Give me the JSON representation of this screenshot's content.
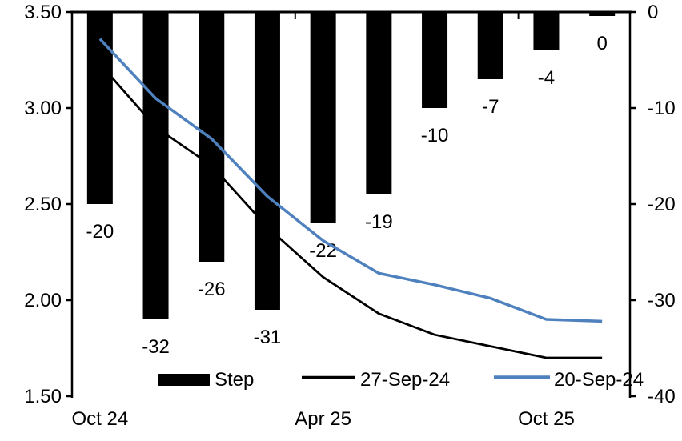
{
  "chart_data": {
    "type": "bar+line",
    "title": "",
    "categories_count": 10,
    "x_tick_labels": [
      {
        "index": 0,
        "label": "Oct 24"
      },
      {
        "index": 4,
        "label": "Apr 25"
      },
      {
        "index": 8,
        "label": "Oct 25"
      }
    ],
    "bar_series": {
      "name": "Step",
      "axis": "right",
      "color": "#000000",
      "values": [
        -20,
        -32,
        -26,
        -31,
        -22,
        -19,
        -10,
        -7,
        -4,
        0
      ],
      "labels": [
        "-20",
        "-32",
        "-26",
        "-31",
        "-22",
        "-19",
        "-10",
        "-7",
        "-4",
        "0"
      ]
    },
    "line_series": [
      {
        "name": "27-Sep-24",
        "axis": "left",
        "color": "#000000",
        "stroke_width": 2.75,
        "values": [
          3.23,
          2.9,
          2.7,
          2.38,
          2.12,
          1.93,
          1.82,
          1.76,
          1.7,
          1.7
        ]
      },
      {
        "name": "20-Sep-24",
        "axis": "left",
        "color": "#4E81BD",
        "stroke_width": 3.5,
        "values": [
          3.36,
          3.05,
          2.84,
          2.54,
          2.31,
          2.14,
          2.08,
          2.01,
          1.9,
          1.89
        ]
      }
    ],
    "left_axis": {
      "min": 1.5,
      "max": 3.5,
      "ticks": [
        {
          "value": 3.5,
          "label": "3.50"
        },
        {
          "value": 3.0,
          "label": "3.00"
        },
        {
          "value": 2.5,
          "label": "2.50"
        },
        {
          "value": 2.0,
          "label": "2.00"
        },
        {
          "value": 1.5,
          "label": "1.50"
        }
      ]
    },
    "right_axis": {
      "min": -40,
      "max": 0,
      "ticks": [
        {
          "value": 0,
          "label": "0"
        },
        {
          "value": -10,
          "label": "-10"
        },
        {
          "value": -20,
          "label": "-20"
        },
        {
          "value": -30,
          "label": "-30"
        },
        {
          "value": -40,
          "label": "-40"
        }
      ]
    },
    "top_axis_tick_boundaries": [
      4,
      8
    ],
    "grid": false,
    "legend_position": "bottom-inside",
    "legend": [
      {
        "label": "Step",
        "marker": "box",
        "color": "#000000"
      },
      {
        "label": "27-Sep-24",
        "marker": "line",
        "color": "#000000"
      },
      {
        "label": "20-Sep-24",
        "marker": "line",
        "color": "#4E81BD"
      }
    ]
  }
}
